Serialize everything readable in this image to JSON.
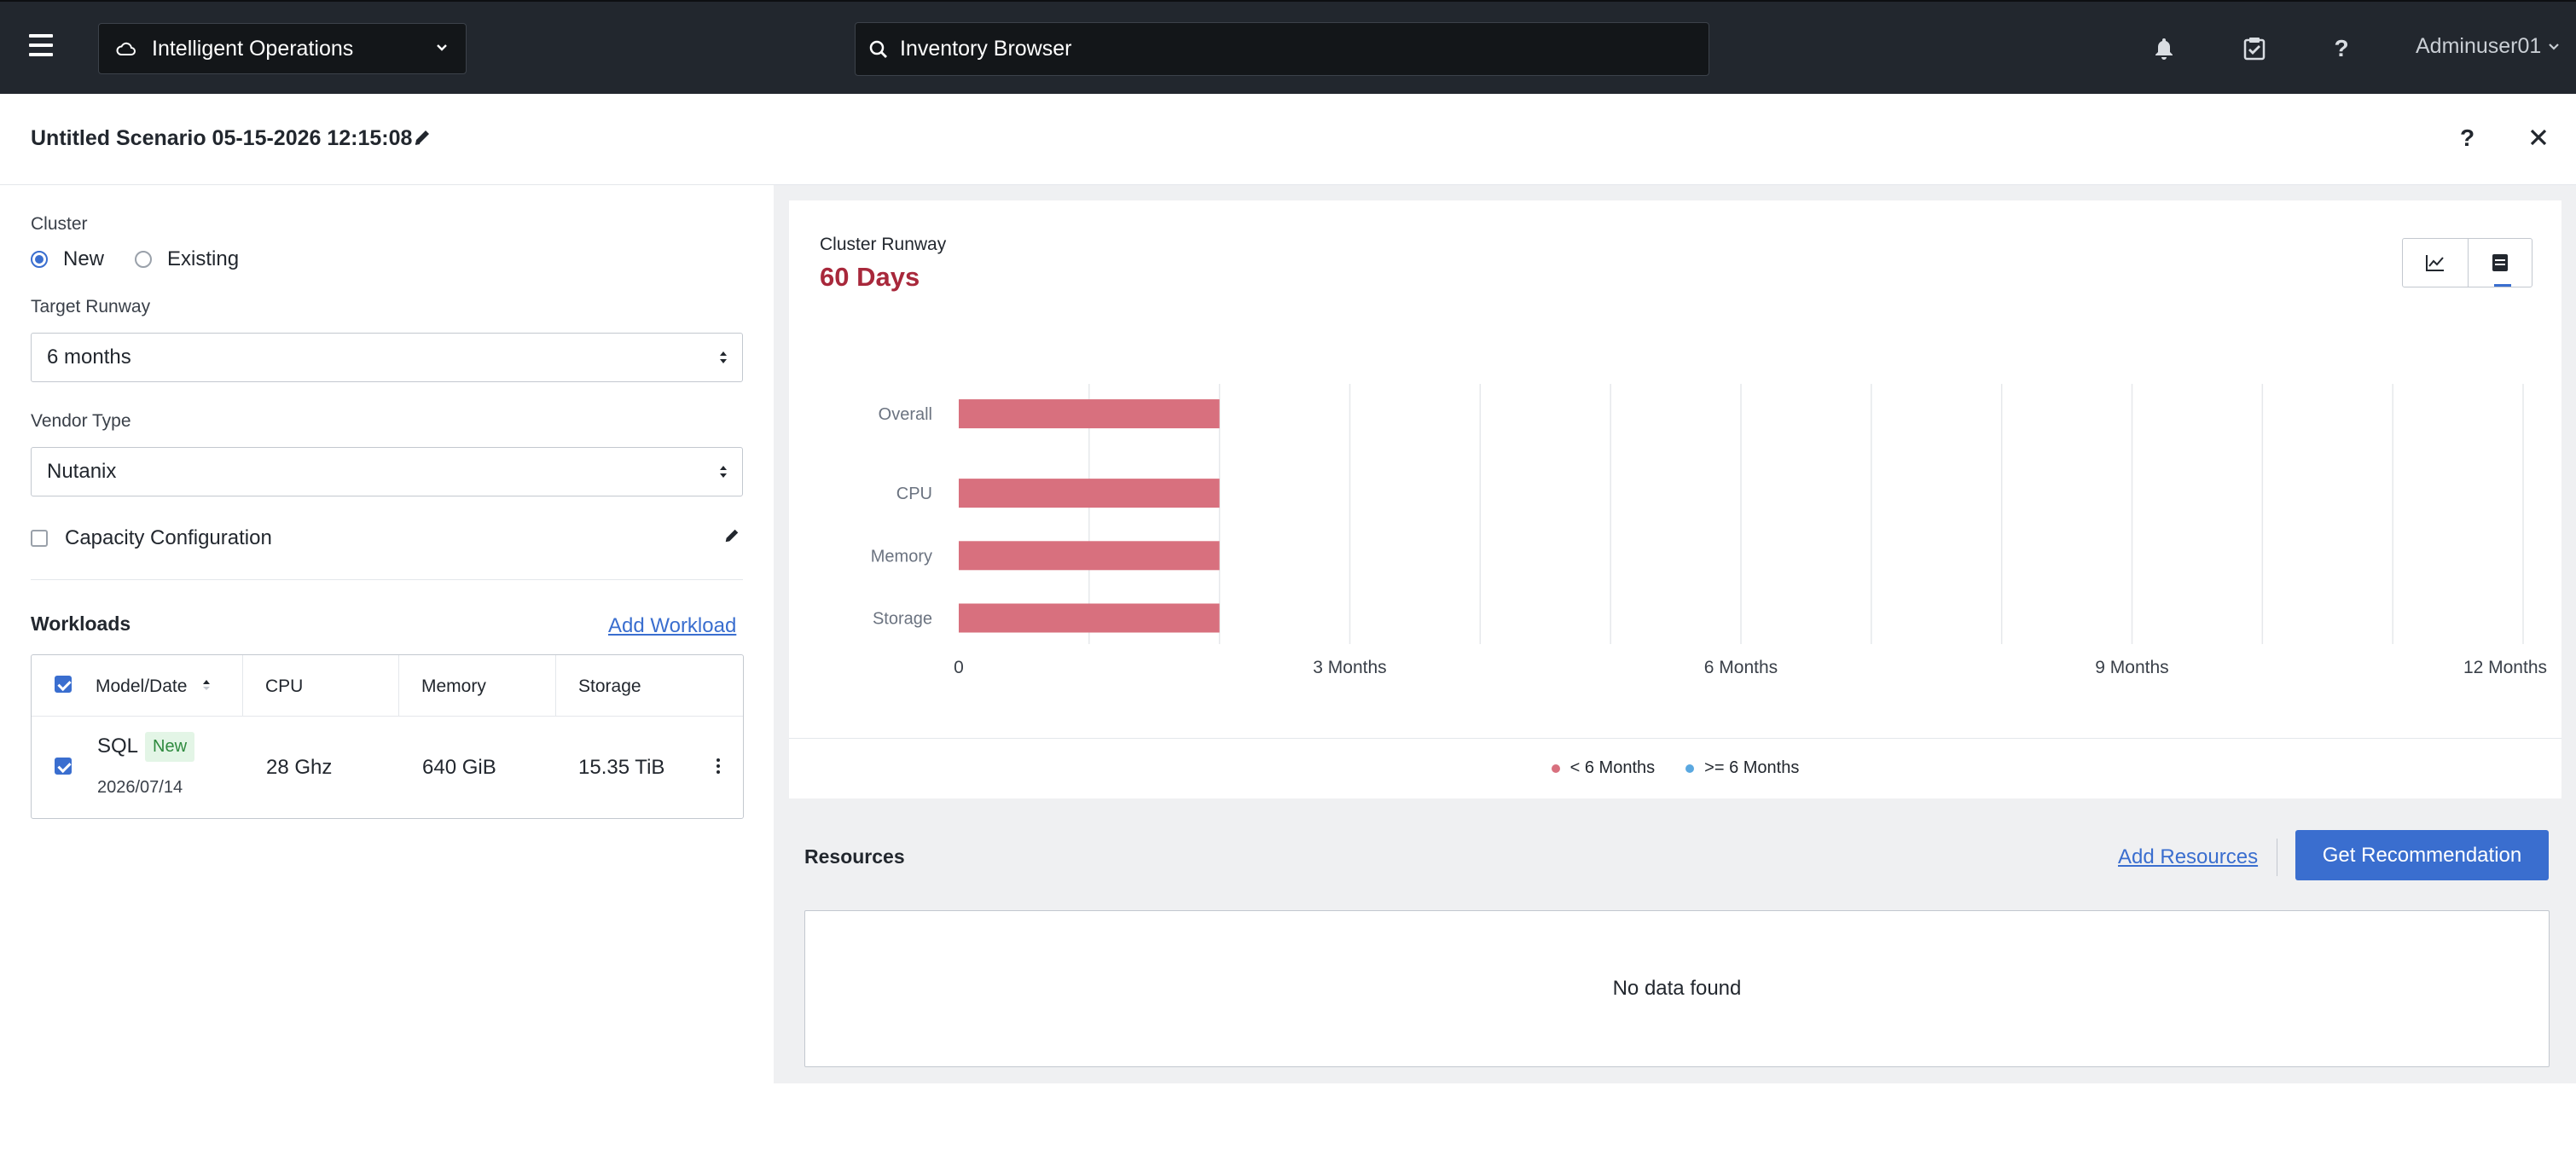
{
  "nav": {
    "app_name": "Intelligent Operations",
    "search_placeholder": "Inventory Browser",
    "user": "Adminuser01",
    "help_glyph": "?"
  },
  "scenario": {
    "title": "Untitled Scenario 05-15-2026 12:15:08",
    "help_glyph": "?"
  },
  "form": {
    "cluster_label": "Cluster",
    "cluster_options": [
      "New",
      "Existing"
    ],
    "cluster_selected": "New",
    "target_runway_label": "Target Runway",
    "target_runway_value": "6 months",
    "vendor_type_label": "Vendor Type",
    "vendor_type_value": "Nutanix",
    "capacity_config_label": "Capacity Configuration",
    "capacity_config_checked": false
  },
  "workloads": {
    "title": "Workloads",
    "add_label": "Add Workload",
    "columns": [
      "Model/Date",
      "CPU",
      "Memory",
      "Storage"
    ],
    "rows": [
      {
        "name": "SQL",
        "badge": "New",
        "date": "2026/07/14",
        "cpu": "28 Ghz",
        "memory": "640 GiB",
        "storage": "15.35 TiB",
        "checked": true
      }
    ]
  },
  "runway": {
    "label": "Cluster Runway",
    "value": "60 Days"
  },
  "chart_data": {
    "type": "bar",
    "orientation": "horizontal",
    "categories": [
      "Overall",
      "CPU",
      "Memory",
      "Storage"
    ],
    "series": [
      {
        "name": "< 6 Months",
        "values": [
          2,
          2,
          2,
          2
        ],
        "color": "#d8707e"
      }
    ],
    "x_ticks": [
      "0",
      "3 Months",
      "6 Months",
      "9 Months",
      "12 Months"
    ],
    "xlim": [
      0,
      12
    ],
    "grid": true,
    "legend_position": "bottom",
    "legend": [
      {
        "label": "< 6 Months",
        "color": "#d8707e"
      },
      {
        "label": ">= 6 Months",
        "color": "#5aa8e0"
      }
    ]
  },
  "resources": {
    "title": "Resources",
    "add_label": "Add Resources",
    "recommend_label": "Get Recommendation",
    "empty_text": "No data found"
  },
  "colors": {
    "accent": "#3a6ecf",
    "nav_bg": "#22272e",
    "runway_value": "#a8283b"
  }
}
